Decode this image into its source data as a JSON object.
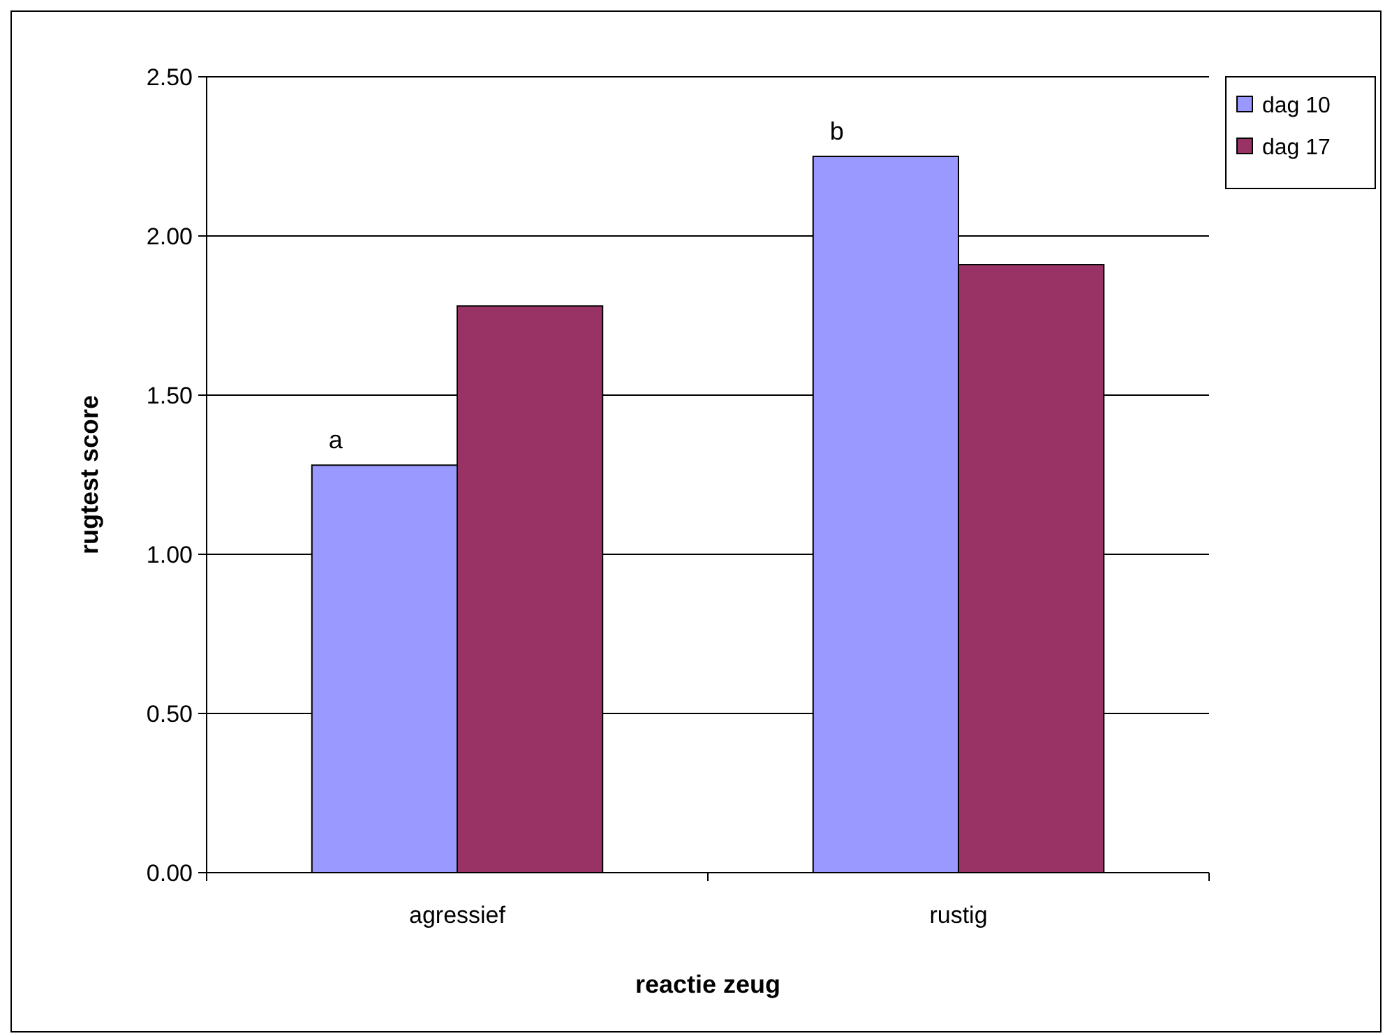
{
  "chart_data": {
    "type": "bar",
    "xlabel": "reactie zeug",
    "ylabel": "rugtest score",
    "categories": [
      "agressief",
      "rustig"
    ],
    "series": [
      {
        "name": "dag 10",
        "color": "#9999ff",
        "values": [
          1.28,
          2.25
        ]
      },
      {
        "name": "dag 17",
        "color": "#993366",
        "values": [
          1.78,
          1.91
        ]
      }
    ],
    "ylim": [
      0,
      2.5
    ],
    "yticks": [
      {
        "value": 0,
        "label": "0.00"
      },
      {
        "value": 0.5,
        "label": "0.50"
      },
      {
        "value": 1,
        "label": "1.00"
      },
      {
        "value": 1.5,
        "label": "1.50"
      },
      {
        "value": 2,
        "label": "2.00"
      },
      {
        "value": 2.5,
        "label": "2.50"
      }
    ],
    "grid": "y",
    "legend": "top right",
    "annotations": [
      "a",
      "b"
    ]
  }
}
